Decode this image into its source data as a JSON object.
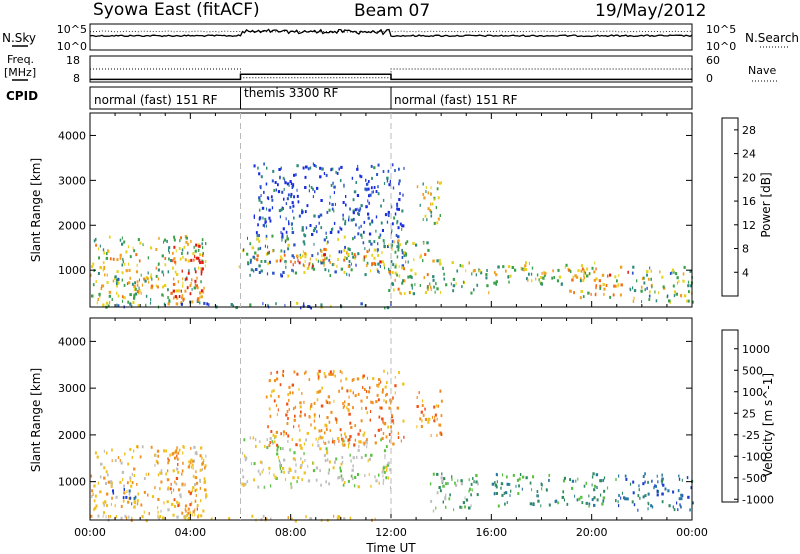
{
  "header": {
    "title": "Syowa East (fitACF)",
    "beam": "Beam 07",
    "date": "19/May/2012"
  },
  "side_labels": {
    "nsky": "N.Sky",
    "nsearch": "N.Search",
    "freq": "Freq.",
    "freq_unit": "[MHz]",
    "nave": "Nave",
    "cpid": "CPID"
  },
  "chart_data": [
    {
      "type": "line",
      "title": "",
      "ylabel_left": "N.Sky",
      "ylabel_right": "N.Search",
      "yticks_left": [
        "10^5",
        "10^0"
      ],
      "yticks_right": [
        "10^5",
        "10^0"
      ],
      "scale": "log"
    },
    {
      "type": "line",
      "ylabel_left": "Freq. [MHz]",
      "ylabel_right": "Nave",
      "yticks_left": [
        "18",
        "8"
      ],
      "yticks_right": [
        "60",
        "0"
      ],
      "series": [
        {
          "name": "Freq.",
          "x": [
            "00:00",
            "06:00",
            "06:00",
            "12:00",
            "12:00",
            "24:00"
          ],
          "values": [
            9,
            9,
            11,
            11,
            9,
            9
          ]
        },
        {
          "name": "Nave",
          "x": [
            "00:00",
            "06:00",
            "06:00",
            "12:00",
            "12:00",
            "24:00"
          ],
          "values": [
            30,
            30,
            10,
            10,
            30,
            30
          ]
        }
      ]
    },
    {
      "type": "table",
      "label": "CPID",
      "segments": [
        {
          "start": "00:00",
          "end": "06:00",
          "label": "normal (fast) 151 RF"
        },
        {
          "start": "06:00",
          "end": "12:00",
          "label": "themis 3300 RF"
        },
        {
          "start": "12:00",
          "end": "24:00",
          "label": "normal (fast) 151 RF"
        }
      ]
    },
    {
      "type": "heatmap",
      "quantity": "Power",
      "ylabel": "Slant Range [km]",
      "ylim": [
        180,
        4500
      ],
      "yticks": [
        "1000",
        "2000",
        "3000",
        "4000"
      ],
      "xlim": [
        "00:00",
        "24:00"
      ],
      "colorbar_label": "Power [dB]",
      "colorbar_ticks": [
        "4",
        "8",
        "12",
        "16",
        "20",
        "24",
        "28"
      ],
      "colorbar_range": [
        0,
        30
      ],
      "colors": [
        "#1a2ee0",
        "#2a54c8",
        "#2e8a7a",
        "#3aa04a",
        "#e6d21e",
        "#f0a020",
        "#f26a12",
        "#e01a10"
      ],
      "regions": [
        {
          "t0": 0.0,
          "t1": 4.6,
          "r0": 250,
          "r1": 1800,
          "level": 0.55
        },
        {
          "t0": 1.0,
          "t1": 2.2,
          "r0": 400,
          "r1": 900,
          "level": 0.45
        },
        {
          "t0": 3.2,
          "t1": 4.5,
          "r0": 300,
          "r1": 1600,
          "level": 0.85
        },
        {
          "t0": 5.9,
          "t1": 12.6,
          "r0": 900,
          "r1": 1800,
          "level": 0.35
        },
        {
          "t0": 6.5,
          "t1": 12.0,
          "r0": 1100,
          "r1": 1500,
          "level": 0.7
        },
        {
          "t0": 6.5,
          "t1": 12.5,
          "r0": 1800,
          "r1": 3400,
          "level": 0.15
        },
        {
          "t0": 11.8,
          "t1": 13.5,
          "r0": 500,
          "r1": 1700,
          "level": 0.55
        },
        {
          "t0": 13.0,
          "t1": 14.0,
          "r0": 2000,
          "r1": 3000,
          "level": 0.5
        },
        {
          "t0": 13.5,
          "t1": 16.0,
          "r0": 500,
          "r1": 1300,
          "level": 0.5
        },
        {
          "t0": 16.0,
          "t1": 20.5,
          "r0": 700,
          "r1": 1200,
          "level": 0.5
        },
        {
          "t0": 19.0,
          "t1": 21.5,
          "r0": 400,
          "r1": 1100,
          "level": 0.65
        },
        {
          "t0": 21.5,
          "t1": 24.0,
          "r0": 300,
          "r1": 1100,
          "level": 0.45
        },
        {
          "t0": 0.0,
          "t1": 12.0,
          "r0": 190,
          "r1": 300,
          "level": 0.3
        }
      ]
    },
    {
      "type": "heatmap",
      "quantity": "Velocity",
      "ylabel": "Slant Range [km]",
      "xlabel": "Time UT",
      "ylim": [
        180,
        4500
      ],
      "yticks": [
        "1000",
        "2000",
        "3000",
        "4000"
      ],
      "xticks": [
        "00:00",
        "04:00",
        "08:00",
        "12:00",
        "16:00",
        "20:00",
        "00:00"
      ],
      "xlim": [
        "00:00",
        "24:00"
      ],
      "colorbar_label": "Velocity [m s^-1]",
      "colorbar_ticks": [
        "1000",
        "500",
        "100",
        "25",
        "-25",
        "-100",
        "-500",
        "-1000"
      ],
      "colors": [
        "#1a3cd0",
        "#2a78a0",
        "#2f8a60",
        "#5ac040",
        "#bebebe",
        "#f0c020",
        "#f09020",
        "#f05010",
        "#e01a10"
      ],
      "regions": [
        {
          "t0": 0.0,
          "t1": 4.6,
          "r0": 250,
          "r1": 1800,
          "cls": 5
        },
        {
          "t0": 0.8,
          "t1": 1.8,
          "r0": 500,
          "r1": 900,
          "cls": 0
        },
        {
          "t0": 3.0,
          "t1": 4.6,
          "r0": 300,
          "r1": 1700,
          "cls": 6
        },
        {
          "t0": 6.0,
          "t1": 12.0,
          "r0": 900,
          "r1": 2000,
          "cls": 4
        },
        {
          "t0": 7.0,
          "t1": 12.5,
          "r0": 1800,
          "r1": 3400,
          "cls": 6
        },
        {
          "t0": 13.0,
          "t1": 14.0,
          "r0": 2000,
          "r1": 3000,
          "cls": 6
        },
        {
          "t0": 13.5,
          "t1": 15.5,
          "r0": 400,
          "r1": 1200,
          "cls": 3
        },
        {
          "t0": 16.0,
          "t1": 21.0,
          "r0": 500,
          "r1": 1200,
          "cls": 2
        },
        {
          "t0": 21.0,
          "t1": 24.0,
          "r0": 400,
          "r1": 1200,
          "cls": 1
        },
        {
          "t0": 0.0,
          "t1": 12.0,
          "r0": 190,
          "r1": 300,
          "cls": 5
        }
      ]
    }
  ]
}
